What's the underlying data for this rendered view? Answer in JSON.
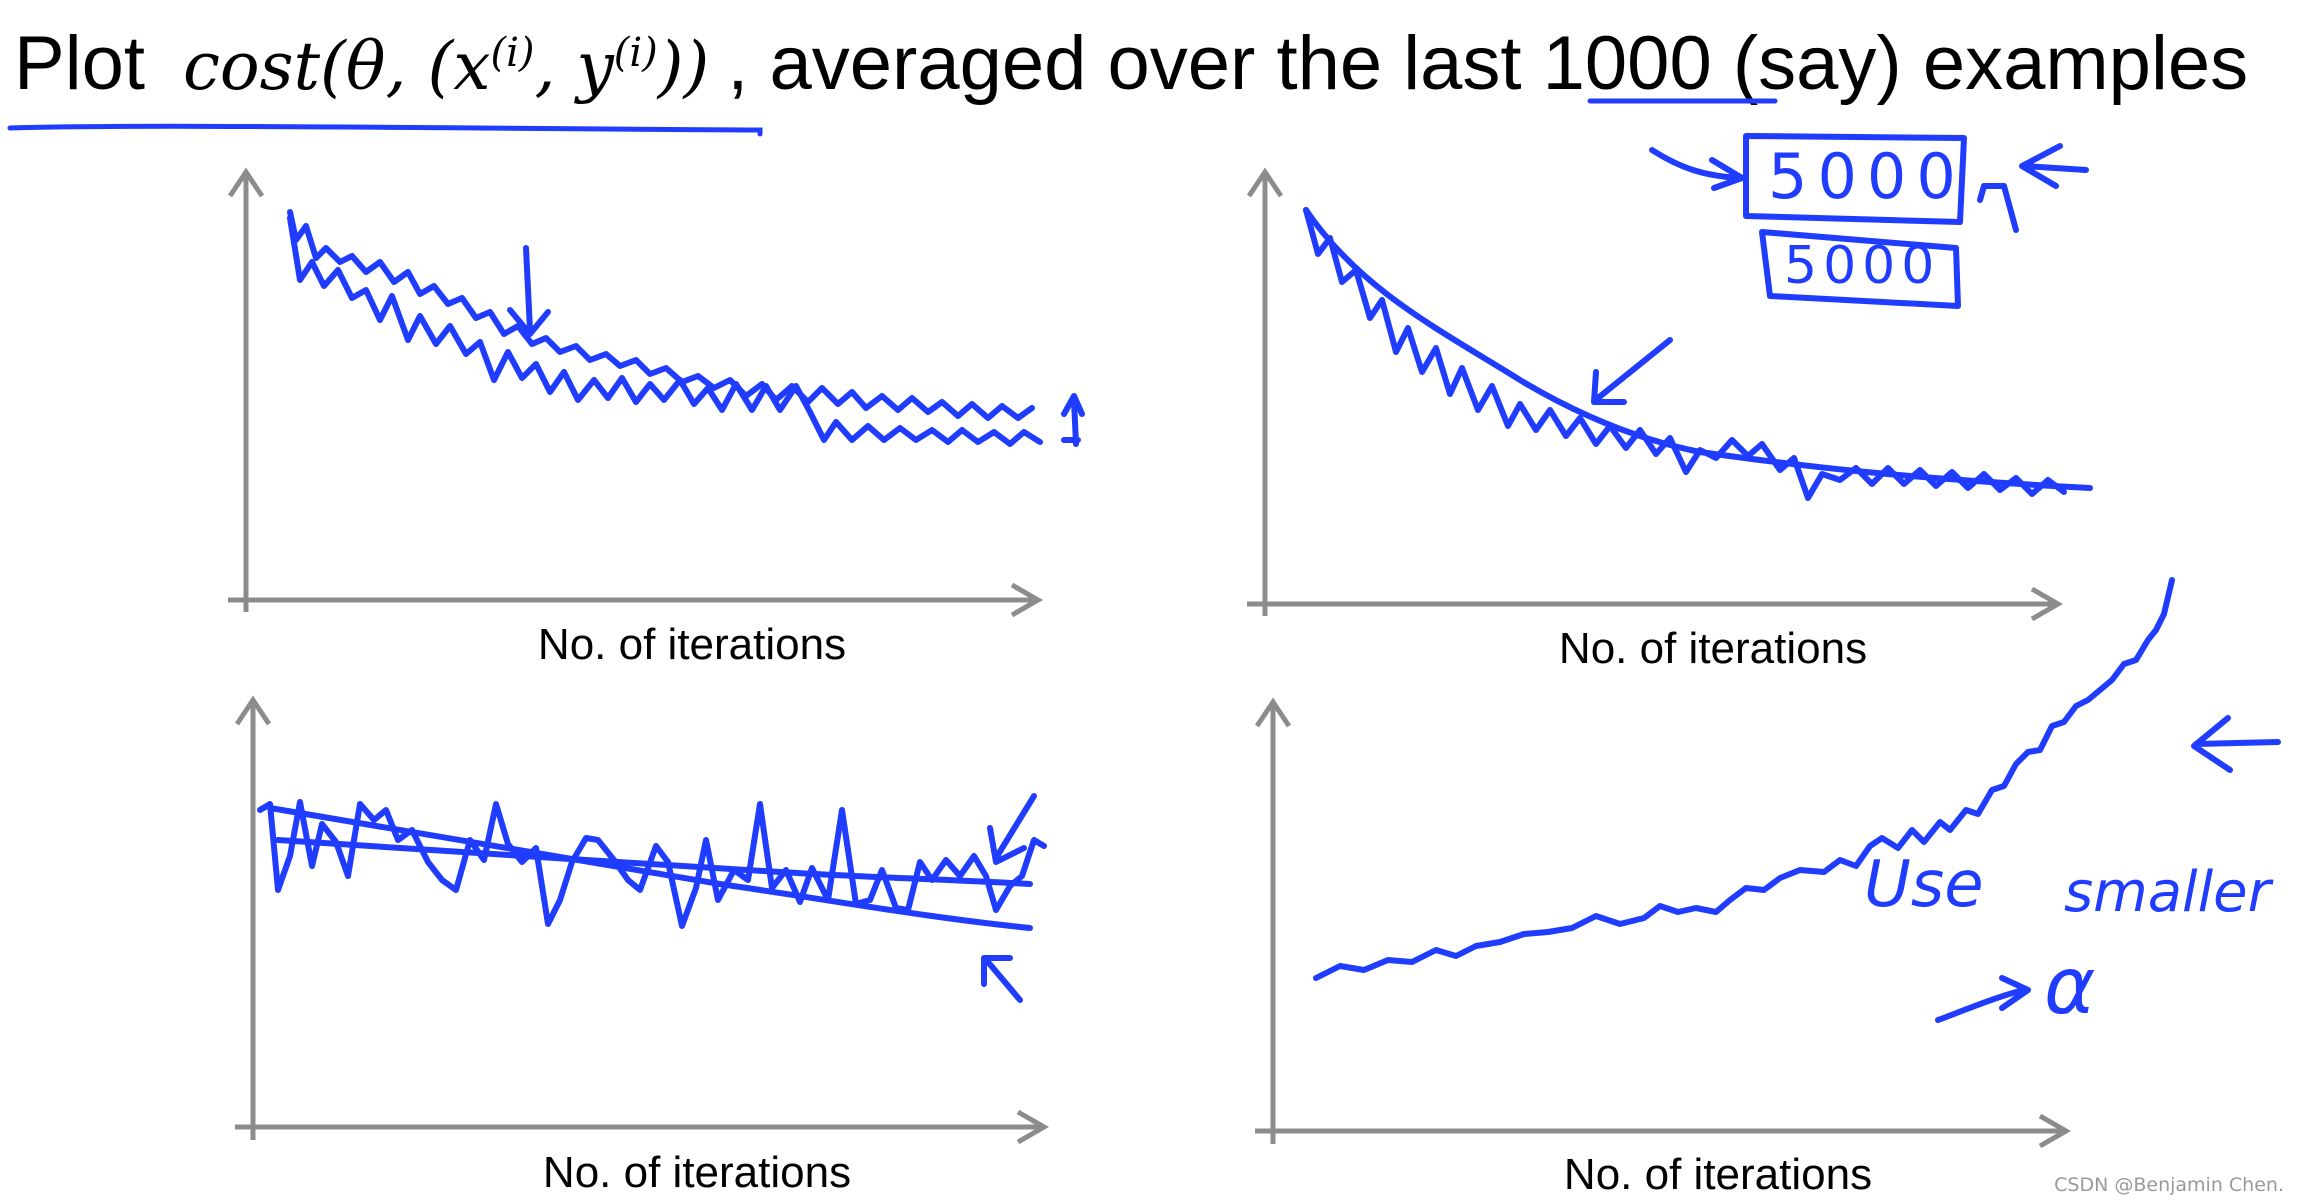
{
  "header": {
    "plot_word": "Plot",
    "math_expr_base": "cost(θ, (x",
    "math_sup_1": "(i)",
    "math_expr_mid": ", y",
    "math_sup_2": "(i)",
    "math_expr_end": "))",
    "rest_before_number": ", averaged over the last ",
    "number": "1000",
    "rest_after_number": " (say) examples"
  },
  "panels": [
    {
      "xlabel": "No. of iterations"
    },
    {
      "xlabel": "No. of iterations"
    },
    {
      "xlabel": "No. of iterations"
    },
    {
      "xlabel": "No. of iterations"
    }
  ],
  "annotations": {
    "box_top": "5000",
    "box_bottom": "5000",
    "note_line1_a": "Use",
    "note_line1_b": "smaller",
    "note_alpha": "α"
  },
  "credit": "CSDN @Benjamin Chen.",
  "colors": {
    "ink": "#1f3cff",
    "axis": "#8c8c8c"
  }
}
